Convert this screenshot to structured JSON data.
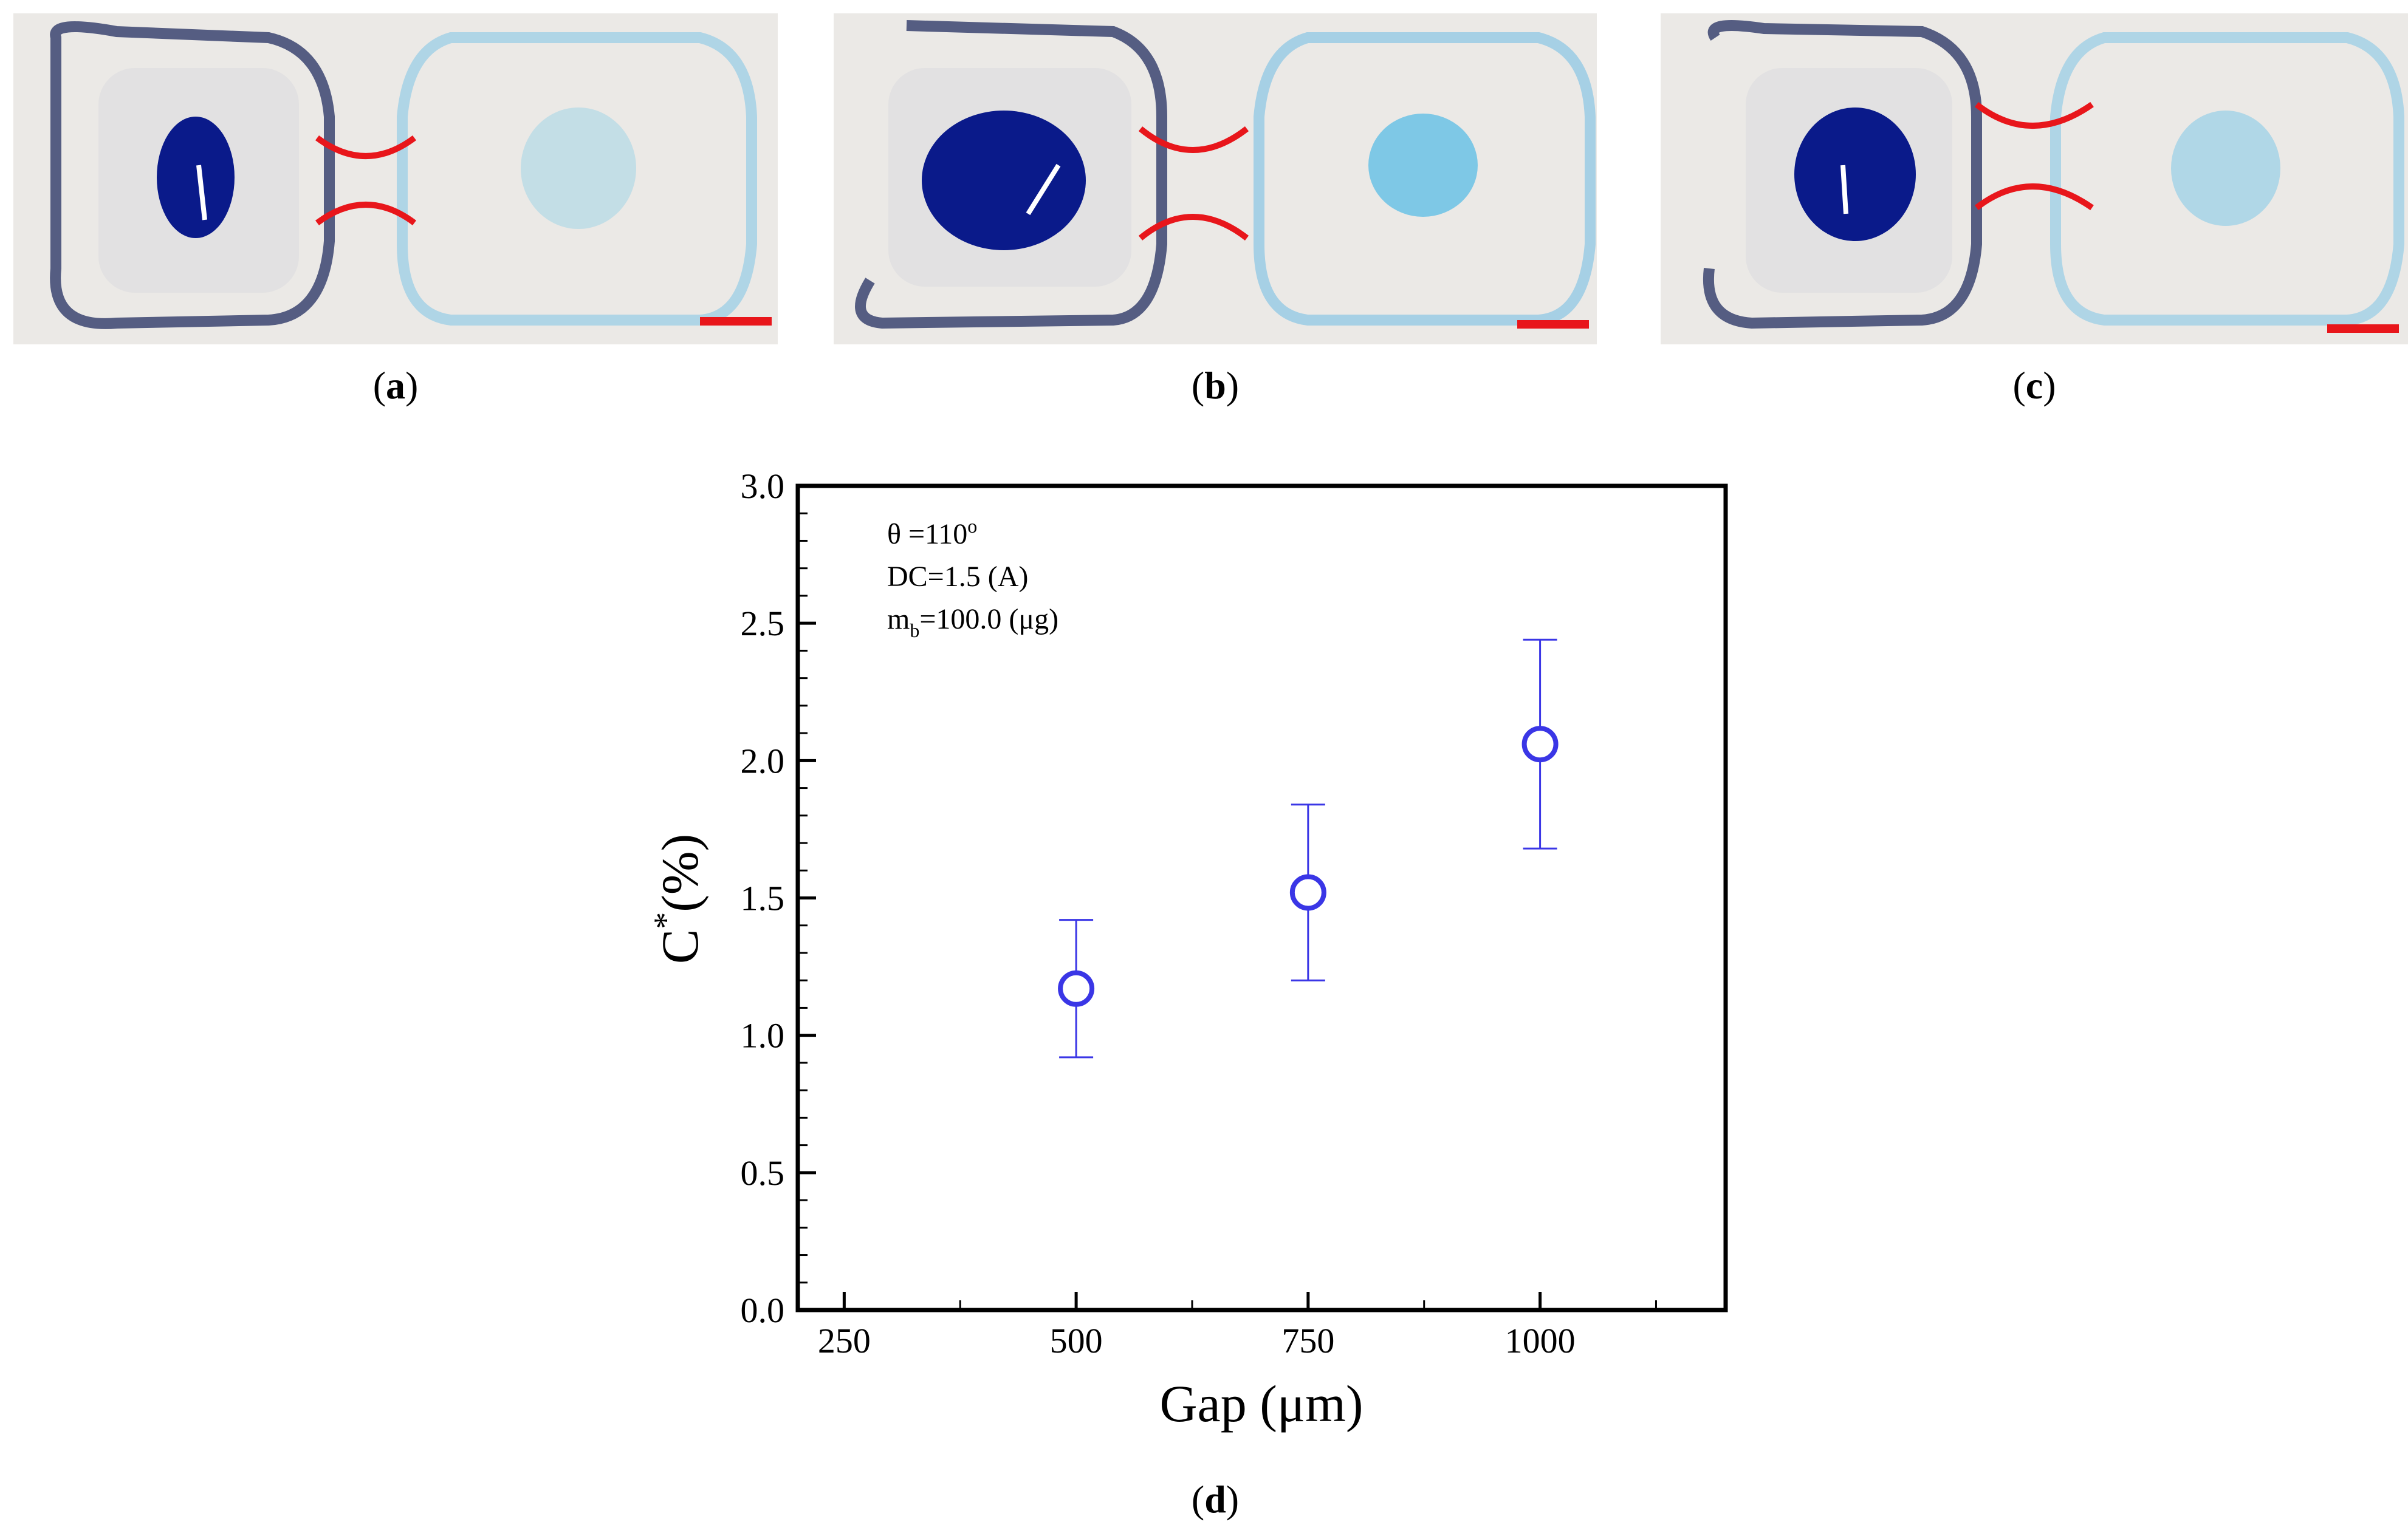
{
  "panels": [
    {
      "label_letter": "a"
    },
    {
      "label_letter": "b"
    },
    {
      "label_letter": "c"
    },
    {
      "label_letter": "d"
    }
  ],
  "colors": {
    "droplet_dark": "#0a1a8a",
    "droplet_light": "#7ec8e6",
    "gap_marker": "#e8161b",
    "scale_bar": "#e8161b",
    "series": "#3a36e6"
  },
  "chart_data": {
    "type": "scatter",
    "xlabel_main": "Gap (",
    "xlabel_unit": "μm",
    "xlabel_close": ")",
    "ylabel_main": "C",
    "ylabel_sup": "*",
    "ylabel_unit": "(%)",
    "xlim": [
      200,
      1200
    ],
    "ylim": [
      0,
      3.0
    ],
    "x_ticks": [
      250,
      500,
      750,
      1000
    ],
    "y_ticks": [
      0.0,
      0.5,
      1.0,
      1.5,
      2.0,
      2.5,
      3.0
    ],
    "y_tick_labels": [
      "0.0",
      "0.5",
      "1.0",
      "1.5",
      "2.0",
      "2.5",
      "3.0"
    ],
    "grid": false,
    "annotations": {
      "line1_main": "θ =110",
      "line1_sup": "o",
      "line2": "DC=1.5 (A)",
      "line3_main": "m",
      "line3_sub": "b",
      "line3_rest": "=100.0 (μg)"
    },
    "series": [
      {
        "x": [
          500,
          750,
          1000
        ],
        "y": [
          1.17,
          1.52,
          2.06
        ],
        "y_err_low": [
          0.92,
          1.2,
          1.68
        ],
        "y_err_high": [
          1.42,
          1.84,
          2.44
        ],
        "marker": "open-circle"
      }
    ]
  }
}
